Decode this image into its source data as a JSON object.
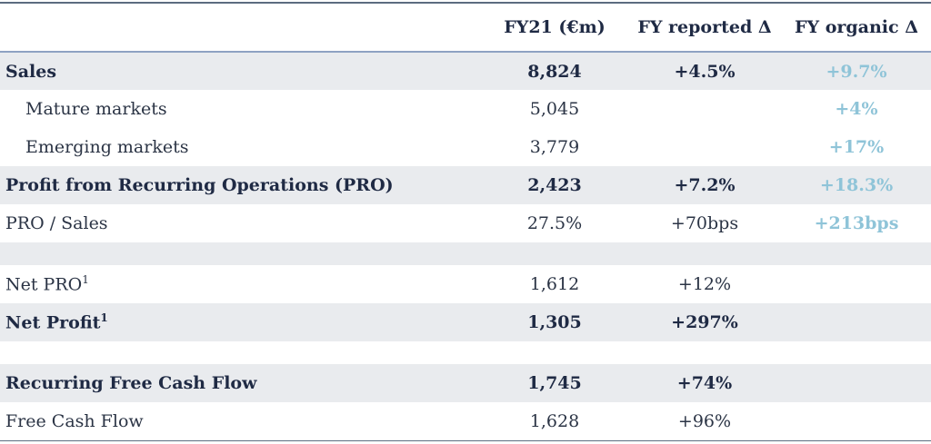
{
  "table": {
    "header": [
      "FY21 (€m)",
      "FY reported Δ",
      "FY organic Δ"
    ],
    "rows": [
      {
        "label": "Sales",
        "fy21": "8,824",
        "reported": "+4.5%",
        "organic": "+9.7%"
      },
      {
        "label": "Mature markets",
        "fy21": "5,045",
        "organic": "+4%"
      },
      {
        "label": "Emerging markets",
        "fy21": "3,779",
        "organic": "+17%"
      },
      {
        "label": "Profit from Recurring Operations (PRO)",
        "fy21": "2,423",
        "reported": "+7.2%",
        "organic": "+18.3%"
      },
      {
        "label": "PRO / Sales",
        "fy21": "27.5%",
        "reported": "+70bps",
        "organic": "+213bps"
      },
      {
        "label": "Net PRO",
        "sup": "1",
        "fy21": "1,612",
        "reported": "+12%"
      },
      {
        "label": "Net Profit",
        "sup": "1",
        "fy21": "1,305",
        "reported": "+297%"
      },
      {
        "label": "Recurring Free Cash Flow",
        "fy21": "1,745",
        "reported": "+74%"
      },
      {
        "label": "Free Cash Flow",
        "fy21": "1,628",
        "reported": "+96%"
      }
    ]
  }
}
